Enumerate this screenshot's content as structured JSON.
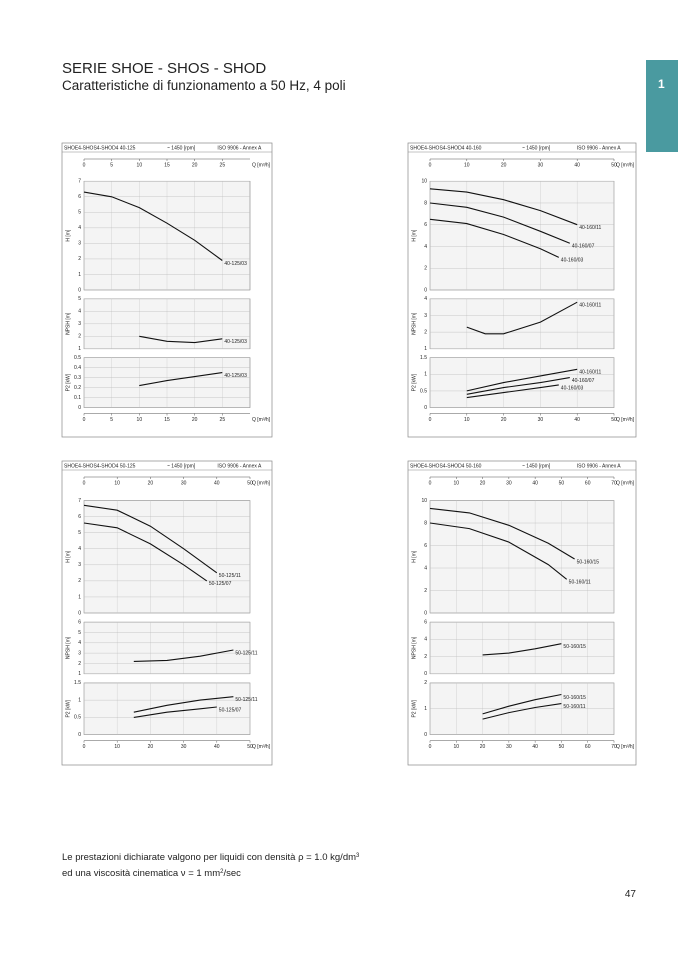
{
  "header": {
    "title": "SERIE SHOE - SHOS - SHOD",
    "subtitle": "Caratteristiche di funzionamento a 50 Hz, 4 poli",
    "tab": "1"
  },
  "labels": {
    "h": "H [m]",
    "npsh": "NPSH [m]",
    "p2": "P2 [kW]",
    "q": "Q [m³/h]"
  },
  "panels": [
    {
      "model": "SHOE4-SHOS4-SHOD4 40-125",
      "speed": "~ 1450 [rpm]",
      "norm": "ISO 9906 - Annex A",
      "qlim": [
        0,
        30
      ],
      "qticks": [
        0,
        5,
        10,
        15,
        20,
        25
      ],
      "h": {
        "ylim": [
          0,
          7
        ],
        "yticks": [
          0,
          1,
          2,
          3,
          4,
          5,
          6,
          7
        ],
        "curves": [
          {
            "name": "40-125/03",
            "x": [
              0,
              5,
              10,
              15,
              20,
              25
            ],
            "y": [
              6.3,
              6.0,
              5.3,
              4.3,
              3.2,
              1.9
            ]
          }
        ]
      },
      "npsh": {
        "ylim": [
          1,
          5
        ],
        "yticks": [
          1,
          2,
          3,
          4,
          5
        ],
        "curves": [
          {
            "name": "40-125/03",
            "x": [
              10,
              15,
              20,
              25
            ],
            "y": [
              2.0,
              1.6,
              1.5,
              1.8
            ]
          }
        ]
      },
      "p2": {
        "ylim": [
          0,
          0.5
        ],
        "yticks": [
          0,
          0.1,
          0.2,
          0.3,
          0.4,
          0.5
        ],
        "curves": [
          {
            "name": "40-125/03",
            "x": [
              10,
              15,
              20,
              25
            ],
            "y": [
              0.22,
              0.27,
              0.31,
              0.35
            ]
          }
        ]
      }
    },
    {
      "model": "SHOE4-SHOS4-SHOD4 40-160",
      "speed": "~ 1450 [rpm]",
      "norm": "ISO 9906 - Annex A",
      "qlim": [
        0,
        50
      ],
      "qticks": [
        0,
        10,
        20,
        30,
        40,
        50
      ],
      "h": {
        "ylim": [
          0,
          10
        ],
        "yticks": [
          0,
          2,
          4,
          6,
          8,
          10
        ],
        "curves": [
          {
            "name": "40-160/11",
            "x": [
              0,
              10,
              20,
              30,
              40
            ],
            "y": [
              9.3,
              9.0,
              8.3,
              7.3,
              6.0
            ]
          },
          {
            "name": "40-160/07",
            "x": [
              0,
              10,
              20,
              30,
              38
            ],
            "y": [
              8.0,
              7.6,
              6.7,
              5.4,
              4.3
            ]
          },
          {
            "name": "40-160/03",
            "x": [
              0,
              10,
              20,
              30,
              35
            ],
            "y": [
              6.5,
              6.1,
              5.1,
              3.8,
              3.0
            ]
          }
        ]
      },
      "npsh": {
        "ylim": [
          1,
          4
        ],
        "yticks": [
          1,
          2,
          3,
          4
        ],
        "curves": [
          {
            "name": "40-160/11",
            "x": [
              10,
              15,
              20,
              30,
              40
            ],
            "y": [
              2.3,
              1.9,
              1.9,
              2.6,
              3.8
            ]
          }
        ]
      },
      "p2": {
        "ylim": [
          0,
          1.5
        ],
        "yticks": [
          0,
          0.5,
          1,
          1.5
        ],
        "curves": [
          {
            "name": "40-160/11",
            "x": [
              10,
              20,
              30,
              40
            ],
            "y": [
              0.5,
              0.75,
              0.95,
              1.15
            ]
          },
          {
            "name": "40-160/07",
            "x": [
              10,
              20,
              30,
              38
            ],
            "y": [
              0.4,
              0.6,
              0.75,
              0.9
            ]
          },
          {
            "name": "40-160/03",
            "x": [
              10,
              20,
              30,
              35
            ],
            "y": [
              0.3,
              0.45,
              0.6,
              0.68
            ]
          }
        ]
      }
    },
    {
      "model": "SHOE4-SHOS4-SHOD4 50-125",
      "speed": "~ 1450 [rpm]",
      "norm": "ISO 9906 - Annex A",
      "qlim": [
        0,
        50
      ],
      "qticks": [
        0,
        10,
        20,
        30,
        40,
        50
      ],
      "h": {
        "ylim": [
          0,
          7
        ],
        "yticks": [
          0,
          1,
          2,
          3,
          4,
          5,
          6,
          7
        ],
        "curves": [
          {
            "name": "50-125/11",
            "x": [
              0,
              10,
              20,
              30,
              40
            ],
            "y": [
              6.7,
              6.4,
              5.4,
              4.0,
              2.5
            ]
          },
          {
            "name": "50-125/07",
            "x": [
              0,
              10,
              20,
              30,
              37
            ],
            "y": [
              5.6,
              5.3,
              4.3,
              3.0,
              2.0
            ]
          }
        ]
      },
      "npsh": {
        "ylim": [
          1,
          6
        ],
        "yticks": [
          1,
          2,
          3,
          4,
          5,
          6
        ],
        "curves": [
          {
            "name": "50-125/11",
            "x": [
              15,
              25,
              35,
              45
            ],
            "y": [
              2.2,
              2.3,
              2.7,
              3.3
            ]
          }
        ]
      },
      "p2": {
        "ylim": [
          0,
          1.5
        ],
        "yticks": [
          0,
          0.5,
          1,
          1.5
        ],
        "curves": [
          {
            "name": "50-125/11",
            "x": [
              15,
              25,
              35,
              45
            ],
            "y": [
              0.65,
              0.85,
              1.0,
              1.1
            ]
          },
          {
            "name": "50-125/07",
            "x": [
              15,
              25,
              35,
              40
            ],
            "y": [
              0.5,
              0.65,
              0.75,
              0.8
            ]
          }
        ]
      }
    },
    {
      "model": "SHOE4-SHOS4-SHOD4 50-160",
      "speed": "~ 1450 [rpm]",
      "norm": "ISO 9906 - Annex A",
      "qlim": [
        0,
        70
      ],
      "qticks": [
        0,
        10,
        20,
        30,
        40,
        50,
        60,
        70
      ],
      "h": {
        "ylim": [
          0,
          10
        ],
        "yticks": [
          0,
          2,
          4,
          6,
          8,
          10
        ],
        "curves": [
          {
            "name": "50-160/15",
            "x": [
              0,
              15,
              30,
              45,
              55
            ],
            "y": [
              9.3,
              8.9,
              7.8,
              6.2,
              4.8
            ]
          },
          {
            "name": "50-160/11",
            "x": [
              0,
              15,
              30,
              45,
              52
            ],
            "y": [
              8.0,
              7.5,
              6.3,
              4.3,
              3.0
            ]
          }
        ]
      },
      "npsh": {
        "ylim": [
          0,
          6
        ],
        "yticks": [
          0,
          2,
          4,
          6
        ],
        "curves": [
          {
            "name": "50-160/15",
            "x": [
              20,
              30,
              40,
              50
            ],
            "y": [
              2.2,
              2.4,
              2.9,
              3.5
            ]
          }
        ]
      },
      "p2": {
        "ylim": [
          0,
          2
        ],
        "yticks": [
          0,
          1,
          2
        ],
        "curves": [
          {
            "name": "50-160/15",
            "x": [
              20,
              30,
              40,
              50
            ],
            "y": [
              0.8,
              1.1,
              1.35,
              1.55
            ]
          },
          {
            "name": "50-160/11",
            "x": [
              20,
              30,
              40,
              50
            ],
            "y": [
              0.6,
              0.85,
              1.05,
              1.2
            ]
          }
        ]
      }
    }
  ],
  "footer": {
    "line1": "Le prestazioni dichiarate valgono per liquidi con densità ρ = 1.0 kg/dm",
    "line1_sup": "3",
    "line2a": "ed una viscosità cinematica ν = 1 mm",
    "line2_sup": "2",
    "line2b": "/sec",
    "page": "47"
  }
}
